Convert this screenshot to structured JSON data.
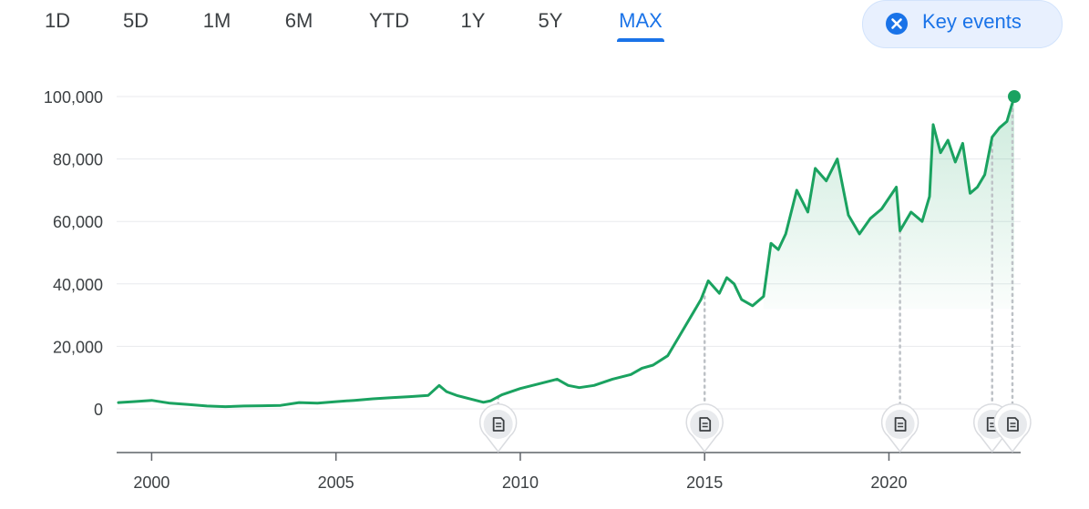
{
  "tabs": [
    {
      "label": "1D",
      "active": false
    },
    {
      "label": "5D",
      "active": false
    },
    {
      "label": "1M",
      "active": false
    },
    {
      "label": "6M",
      "active": false
    },
    {
      "label": "YTD",
      "active": false
    },
    {
      "label": "1Y",
      "active": false
    },
    {
      "label": "5Y",
      "active": false
    },
    {
      "label": "MAX",
      "active": true
    }
  ],
  "key_events": {
    "label": "Key events",
    "icon": "close-circle-icon"
  },
  "colors": {
    "line": "#1aa260",
    "accent": "#1a73e8",
    "grid": "#e8eaed",
    "axis": "#5f6368"
  },
  "chart_data": {
    "type": "line",
    "title": "",
    "xlabel": "",
    "ylabel": "",
    "xlim": [
      1999.1,
      2023.4
    ],
    "ylim": [
      -14000,
      100000
    ],
    "y_ticks": [
      {
        "value": 0,
        "label": "0"
      },
      {
        "value": 20000,
        "label": "20,000"
      },
      {
        "value": 40000,
        "label": "40,000"
      },
      {
        "value": 60000,
        "label": "60,000"
      },
      {
        "value": 80000,
        "label": "80,000"
      },
      {
        "value": 100000,
        "label": "100,000"
      }
    ],
    "x_ticks": [
      {
        "value": 2000,
        "label": "2000"
      },
      {
        "value": 2005,
        "label": "2005"
      },
      {
        "value": 2010,
        "label": "2010"
      },
      {
        "value": 2015,
        "label": "2015"
      },
      {
        "value": 2020,
        "label": "2020"
      }
    ],
    "series": [
      {
        "x": [
          1999.1,
          1999.5,
          2000.0,
          2000.5,
          2001.0,
          2001.5,
          2002.0,
          2002.5,
          2003.0,
          2003.5,
          2004.0,
          2004.5,
          2005.0,
          2005.5,
          2006.0,
          2006.5,
          2007.0,
          2007.5,
          2007.8,
          2008.0,
          2008.3,
          2008.7,
          2009.0,
          2009.2,
          2009.5,
          2010.0,
          2010.5,
          2011.0,
          2011.3,
          2011.6,
          2012.0,
          2012.5,
          2013.0,
          2013.3,
          2013.6,
          2014.0,
          2014.3,
          2014.7,
          2014.9,
          2015.1,
          2015.4,
          2015.6,
          2015.8,
          2016.0,
          2016.3,
          2016.6,
          2016.8,
          2017.0,
          2017.2,
          2017.5,
          2017.8,
          2018.0,
          2018.3,
          2018.6,
          2018.9,
          2019.2,
          2019.5,
          2019.8,
          2020.2,
          2020.3,
          2020.6,
          2020.9,
          2021.1,
          2021.2,
          2021.4,
          2021.6,
          2021.8,
          2022.0,
          2022.2,
          2022.4,
          2022.6,
          2022.8,
          2023.0,
          2023.2,
          2023.4
        ],
        "y": [
          2000,
          2300,
          2700,
          1800,
          1400,
          900,
          700,
          900,
          1000,
          1100,
          2000,
          1800,
          2300,
          2700,
          3200,
          3600,
          3900,
          4300,
          7500,
          5500,
          4200,
          3000,
          2100,
          2600,
          4500,
          6500,
          8000,
          9500,
          7500,
          6800,
          7500,
          9500,
          11000,
          13000,
          14000,
          17000,
          23000,
          31000,
          35000,
          41000,
          37000,
          42000,
          40000,
          35000,
          33000,
          36000,
          53000,
          51000,
          56000,
          70000,
          63000,
          77000,
          73000,
          80000,
          62000,
          56000,
          61000,
          64000,
          71000,
          57000,
          63000,
          60000,
          68000,
          91000,
          82000,
          86000,
          79000,
          85000,
          69000,
          71000,
          75000,
          87000,
          90000,
          92000,
          100000
        ]
      }
    ],
    "key_event_years": [
      2009.4,
      2015.0,
      2020.3,
      2022.8,
      2023.35
    ]
  }
}
